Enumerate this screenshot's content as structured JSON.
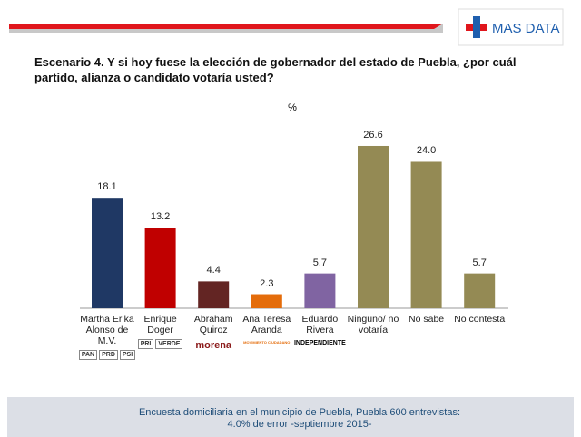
{
  "brand": "MAS DATA",
  "chart_data": {
    "type": "bar",
    "title": "Escenario 4. Y si hoy fuese la elección de gobernador del estado de Puebla, ¿por cuál partido, alianza o candidato votaría usted?",
    "unit_label": "%",
    "categories": [
      "Martha Erika Alonso de M.V.",
      "Enrique Doger",
      "Abraham Quiroz",
      "Ana Teresa Aranda",
      "Eduardo Rivera",
      "Ninguno/ no votaría",
      "No sabe",
      "No contesta"
    ],
    "values": [
      18.1,
      13.2,
      4.4,
      2.3,
      5.7,
      26.6,
      24.0,
      5.7
    ],
    "value_labels": [
      "18.1",
      "13.2",
      "4.4",
      "2.3",
      "5.7",
      "26.6",
      "24.0",
      "5.7"
    ],
    "colors": [
      "#1f3864",
      "#c00000",
      "#632523",
      "#e46c0a",
      "#8064a2",
      "#948a54",
      "#948a54",
      "#948a54"
    ],
    "party_labels": [
      [
        "PAN",
        "PRD",
        "PSI"
      ],
      [
        "PRI",
        "VERDE"
      ],
      [
        "morena"
      ],
      [
        "MOVIMIENTO CIUDADANO"
      ],
      [
        "INDEPENDIENTE"
      ],
      null,
      null,
      null
    ]
  },
  "footer": "Encuesta domiciliaria en el municipio de Puebla, Puebla 600 entrevistas: 4.0% de error -septiembre 2015-"
}
